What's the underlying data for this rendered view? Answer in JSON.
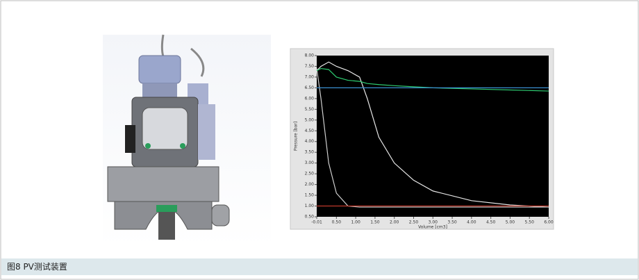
{
  "caption": "图8 PV测试装置",
  "chart_data": {
    "type": "line",
    "y_label": "Pressure [bar]",
    "x_label": "Volume [cm3]",
    "x": [
      -0.01,
      0.1,
      0.3,
      0.5,
      0.8,
      1.1,
      1.3,
      1.6,
      2.0,
      2.5,
      3.0,
      4.0,
      5.0,
      6.0
    ],
    "series": [
      {
        "color": "#e8e8e8",
        "values": [
          7.3,
          7.5,
          7.7,
          7.5,
          7.3,
          7.0,
          6.0,
          4.2,
          3.0,
          2.2,
          1.7,
          1.25,
          1.05,
          0.95
        ]
      },
      {
        "color": "#d0d0d0",
        "values": [
          7.4,
          6.0,
          3.0,
          1.6,
          1.0,
          0.95,
          0.95,
          0.95,
          0.95,
          0.95,
          0.95,
          0.95,
          0.95,
          0.95
        ]
      },
      {
        "color": "#2ecc71",
        "values": [
          7.3,
          7.4,
          7.35,
          7.0,
          6.85,
          6.8,
          6.7,
          6.65,
          6.6,
          6.55,
          6.5,
          6.45,
          6.4,
          6.35
        ]
      },
      {
        "color": "#3a8fd0",
        "values": [
          6.5,
          6.5,
          6.5,
          6.5,
          6.5,
          6.5,
          6.5,
          6.5,
          6.5,
          6.5,
          6.5,
          6.5,
          6.5,
          6.5
        ]
      },
      {
        "color": "#c0392b",
        "values": [
          1.0,
          1.0,
          1.0,
          1.0,
          1.0,
          1.0,
          1.0,
          1.0,
          1.0,
          1.0,
          1.0,
          1.0,
          1.0,
          1.0
        ]
      }
    ],
    "xlim": [
      -0.01,
      6.0
    ],
    "xticks": [
      -0.01,
      {
        "value": 0.5,
        "label": "0.50"
      },
      {
        "value": 1,
        "label": "1.00"
      },
      {
        "value": 1.5,
        "label": "1.50"
      },
      {
        "value": 2,
        "label": "2.00"
      },
      {
        "value": 2.5,
        "label": "2.50"
      },
      {
        "value": 3,
        "label": "3.00"
      },
      {
        "value": 3.5,
        "label": "3.50"
      },
      {
        "value": 4,
        "label": "4.00"
      },
      {
        "value": 4.5,
        "label": "4.50"
      },
      {
        "value": 5,
        "label": "5.00"
      },
      {
        "value": 5.5,
        "label": "5.50"
      },
      {
        "value": 6,
        "label": "6.00"
      }
    ],
    "ylim": [
      0.5,
      8.0
    ],
    "yticks": [
      {
        "value": 0.5,
        "label": "0.50"
      },
      {
        "value": 1,
        "label": "1.00"
      },
      {
        "value": 1.5,
        "label": "1.50"
      },
      {
        "value": 2,
        "label": "2.00"
      },
      {
        "value": 2.5,
        "label": "2.50"
      },
      {
        "value": 3,
        "label": "3.00"
      },
      {
        "value": 3.5,
        "label": "3.50"
      },
      {
        "value": 4,
        "label": "4.00"
      },
      {
        "value": 4.5,
        "label": "4.50"
      },
      {
        "value": 5,
        "label": "5.00"
      },
      {
        "value": 5.5,
        "label": "5.50"
      },
      {
        "value": 6,
        "label": "6.00"
      },
      {
        "value": 6.5,
        "label": "6.50"
      },
      {
        "value": 7,
        "label": "7.00"
      },
      {
        "value": 7.5,
        "label": "7.50"
      },
      {
        "value": 8,
        "label": "8.00"
      }
    ]
  }
}
